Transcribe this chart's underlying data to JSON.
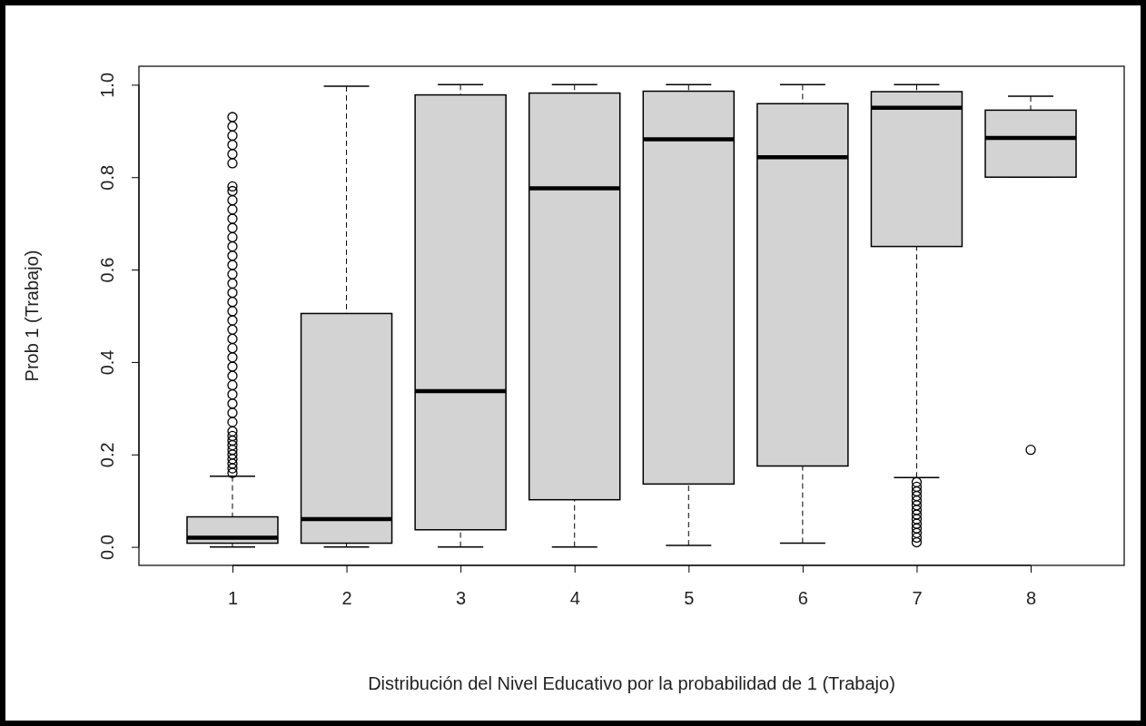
{
  "chart_data": {
    "type": "box",
    "xlabel": "Distribución del Nivel Educativo por la probabilidad de 1 (Trabajo)",
    "ylabel": "Prob 1 (Trabajo)",
    "categories": [
      "1",
      "2",
      "3",
      "4",
      "5",
      "6",
      "7",
      "8"
    ],
    "color": "#d3d3d3",
    "ylim": [
      -0.04,
      1.04
    ],
    "yticks": [
      {
        "value": 0,
        "label": "0.0"
      },
      0.2,
      0.4,
      0.6,
      0.8,
      {
        "value": 1,
        "label": "1.0"
      }
    ],
    "grid": false,
    "boxes": [
      {
        "low": 0,
        "q1": 0.008,
        "median": 0.02,
        "q3": 0.065,
        "high": 0.153,
        "outliers": [
          0.16,
          0.17,
          0.18,
          0.19,
          0.2,
          0.21,
          0.22,
          0.23,
          0.24,
          0.25,
          0.27,
          0.29,
          0.31,
          0.33,
          0.35,
          0.37,
          0.39,
          0.41,
          0.43,
          0.45,
          0.47,
          0.49,
          0.51,
          0.53,
          0.55,
          0.57,
          0.59,
          0.61,
          0.63,
          0.65,
          0.67,
          0.69,
          0.71,
          0.73,
          0.75,
          0.77,
          0.78,
          0.83,
          0.85,
          0.87,
          0.89,
          0.91,
          0.93
        ]
      },
      {
        "low": 0,
        "q1": 0.008,
        "median": 0.06,
        "q3": 0.505,
        "high": 0.997
      },
      {
        "low": 0,
        "q1": 0.037,
        "median": 0.337,
        "q3": 0.978,
        "high": 1
      },
      {
        "low": 0,
        "q1": 0.102,
        "median": 0.776,
        "q3": 0.982,
        "high": 1
      },
      {
        "low": 0.003,
        "q1": 0.136,
        "median": 0.882,
        "q3": 0.986,
        "high": 1
      },
      {
        "low": 0.008,
        "q1": 0.175,
        "median": 0.843,
        "q3": 0.959,
        "high": 1
      },
      {
        "low": 0.15,
        "q1": 0.65,
        "median": 0.95,
        "q3": 0.985,
        "high": 1,
        "outliers": [
          0.01,
          0.02,
          0.03,
          0.04,
          0.05,
          0.06,
          0.07,
          0.08,
          0.09,
          0.1,
          0.11,
          0.12,
          0.13,
          0.14
        ]
      },
      {
        "low": 0.8,
        "q1": 0.8,
        "median": 0.885,
        "q3": 0.945,
        "high": 0.975,
        "outliers": [
          0.21
        ]
      }
    ]
  }
}
